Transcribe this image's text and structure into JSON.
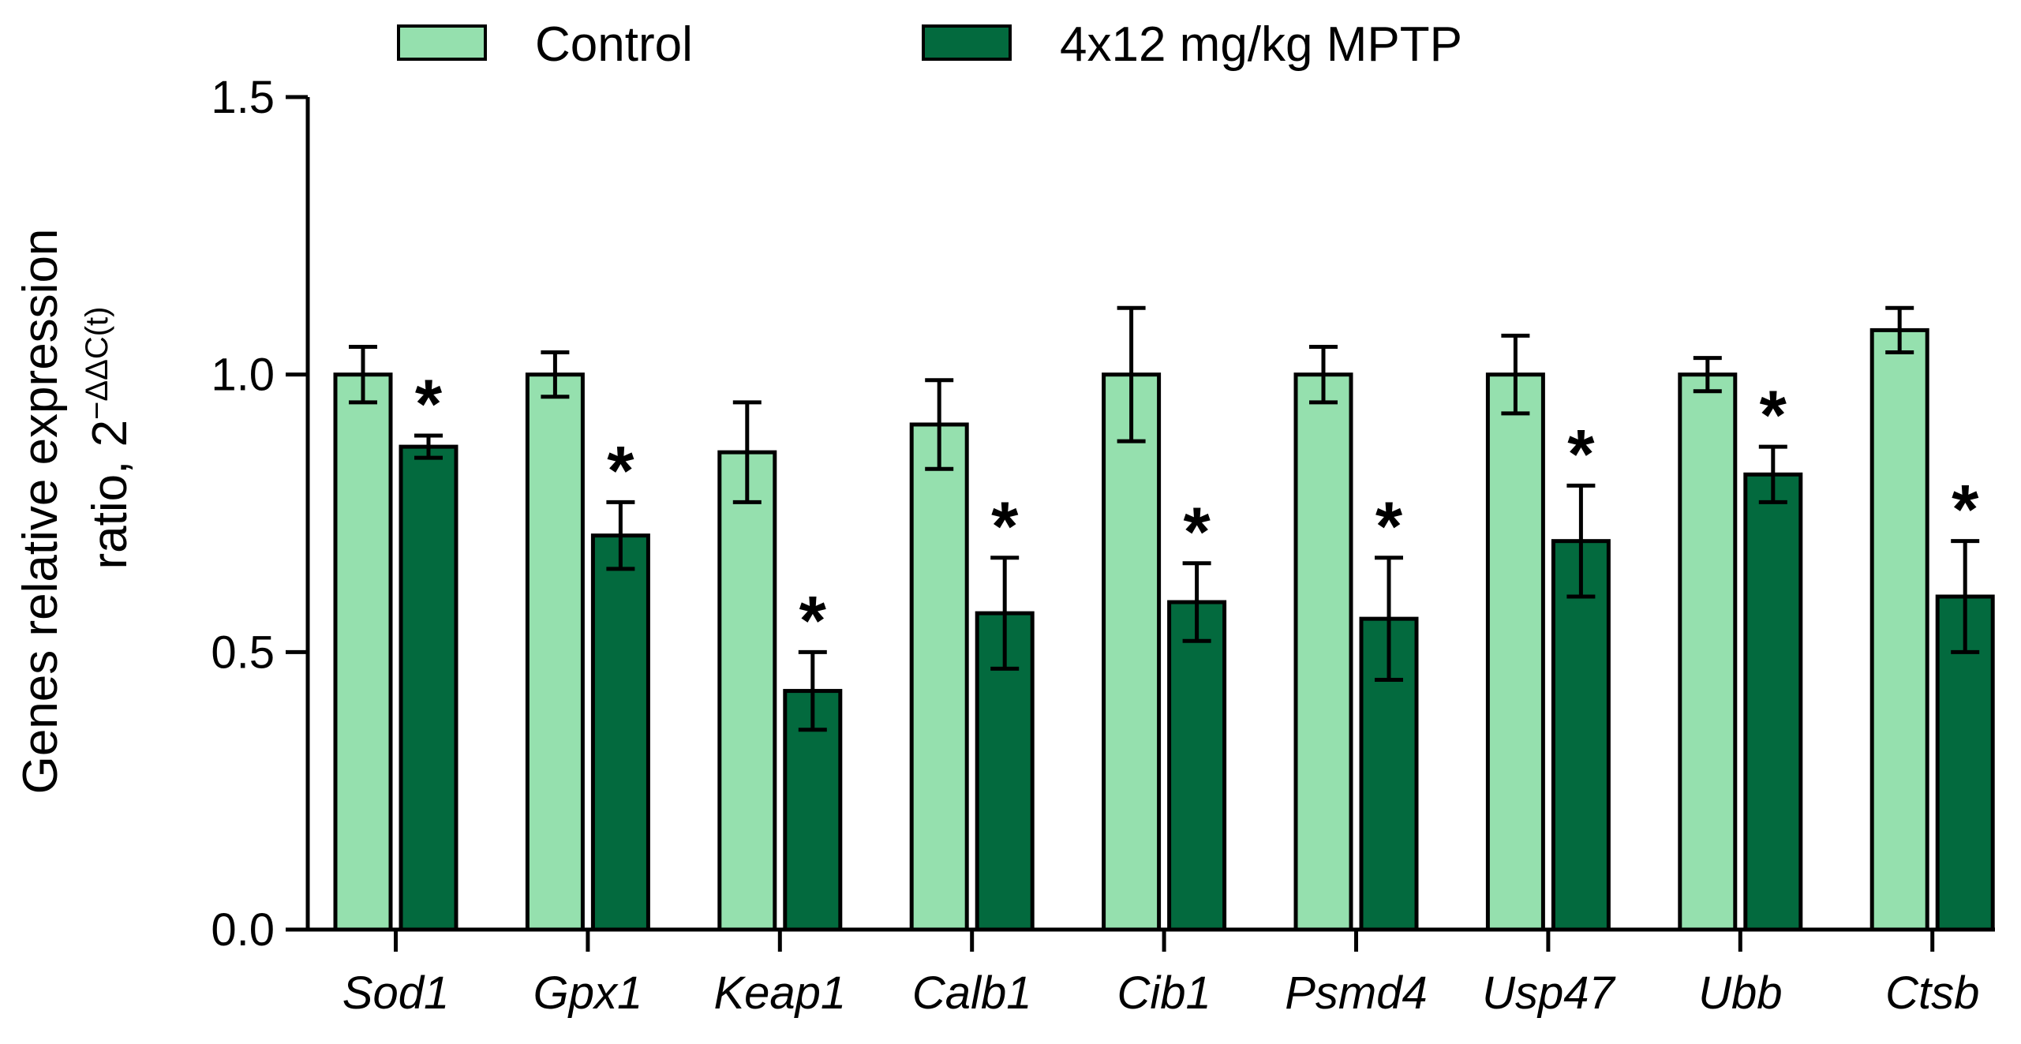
{
  "chart_data": {
    "type": "bar",
    "title": "",
    "xlabel": "",
    "ylabel": {
      "line1": "Genes relative expression",
      "line2_prefix": "ratio, 2",
      "line2_superscript": "−ΔΔC(t)"
    },
    "ylim": [
      0,
      1.5
    ],
    "yticks": [
      0.0,
      0.5,
      1.0,
      1.5
    ],
    "ytick_labels": [
      "0.0",
      "0.5",
      "1.0",
      "1.5"
    ],
    "grid": false,
    "legend_position": "top",
    "categories": [
      "Sod1",
      "Gpx1",
      "Keap1",
      "Calb1",
      "Cib1",
      "Psmd4",
      "Usp47",
      "Ubb",
      "Ctsb"
    ],
    "series": [
      {
        "name": "Control",
        "color": "#95e0ae",
        "values": [
          1.0,
          1.0,
          0.86,
          0.91,
          1.0,
          1.0,
          1.0,
          1.0,
          1.08
        ],
        "errors": [
          0.05,
          0.04,
          0.09,
          0.08,
          0.12,
          0.05,
          0.07,
          0.03,
          0.04
        ]
      },
      {
        "name": "4x12 mg/kg MPTP",
        "color": "#036a3e",
        "values": [
          0.87,
          0.71,
          0.43,
          0.57,
          0.59,
          0.56,
          0.7,
          0.82,
          0.6
        ],
        "errors": [
          0.02,
          0.06,
          0.07,
          0.1,
          0.07,
          0.11,
          0.1,
          0.05,
          0.1
        ],
        "significance": [
          "*",
          "*",
          "*",
          "*",
          "*",
          "*",
          "*",
          "*",
          "*"
        ]
      }
    ]
  }
}
